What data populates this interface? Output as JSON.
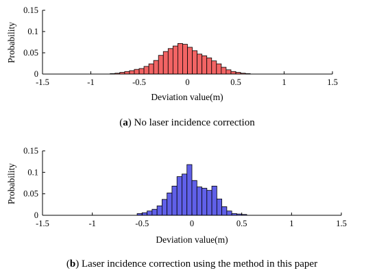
{
  "chart_data": [
    {
      "type": "bar",
      "panel_id": "a",
      "caption": "No laser incidence correction",
      "xlabel": "Deviation value(m)",
      "ylabel": "Probability",
      "xlim": [
        -1.5,
        1.5
      ],
      "ylim": [
        0,
        0.15
      ],
      "xticks": [
        "-1.5",
        "-1",
        "-0.5",
        "0",
        "0.5",
        "1",
        "1.5"
      ],
      "yticks": [
        "0",
        "0.05",
        "0.1",
        "0.15"
      ],
      "grid": false,
      "legend": "none",
      "bar_color": "#f26464",
      "bin_width": 0.05,
      "x": [
        -0.775,
        -0.725,
        -0.675,
        -0.625,
        -0.575,
        -0.525,
        -0.475,
        -0.425,
        -0.375,
        -0.325,
        -0.275,
        -0.225,
        -0.175,
        -0.125,
        -0.075,
        -0.025,
        0.025,
        0.075,
        0.125,
        0.175,
        0.225,
        0.275,
        0.325,
        0.375,
        0.425,
        0.475,
        0.525,
        0.575,
        0.625
      ],
      "values": [
        0.001,
        0.002,
        0.004,
        0.006,
        0.008,
        0.011,
        0.013,
        0.018,
        0.024,
        0.032,
        0.044,
        0.053,
        0.06,
        0.066,
        0.072,
        0.07,
        0.063,
        0.055,
        0.047,
        0.043,
        0.038,
        0.031,
        0.024,
        0.016,
        0.01,
        0.006,
        0.004,
        0.002,
        0.001
      ]
    },
    {
      "type": "bar",
      "panel_id": "b",
      "caption": "Laser incidence correction using the method in this paper",
      "xlabel": "Deviation value(m)",
      "ylabel": "Probability",
      "xlim": [
        -1.5,
        1.5
      ],
      "ylim": [
        0,
        0.15
      ],
      "xticks": [
        "-1.5",
        "-1",
        "-0.5",
        "0",
        "0.5",
        "1",
        "1.5"
      ],
      "yticks": [
        "0",
        "0.05",
        "0.1",
        "0.15"
      ],
      "grid": false,
      "legend": "none",
      "bar_color": "#6060e8",
      "bin_width": 0.05,
      "x": [
        -0.525,
        -0.475,
        -0.425,
        -0.375,
        -0.325,
        -0.275,
        -0.225,
        -0.175,
        -0.125,
        -0.075,
        -0.025,
        0.025,
        0.075,
        0.125,
        0.175,
        0.225,
        0.275,
        0.325,
        0.375,
        0.425,
        0.475,
        0.525
      ],
      "values": [
        0.004,
        0.006,
        0.01,
        0.014,
        0.022,
        0.037,
        0.052,
        0.068,
        0.09,
        0.096,
        0.118,
        0.081,
        0.066,
        0.063,
        0.058,
        0.068,
        0.038,
        0.02,
        0.01,
        0.004,
        0.003,
        0.002
      ]
    }
  ]
}
